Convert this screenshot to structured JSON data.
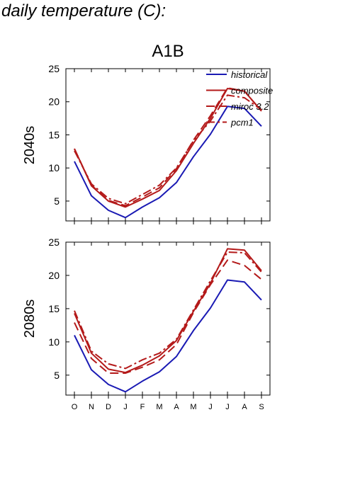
{
  "figure_title": "daily temperature (C):",
  "colors": {
    "historical": "#1a1ab4",
    "composite": "#b41a1a",
    "miroc_3.2": "#b41a1a",
    "pcm1": "#b41a1a"
  },
  "chart_data": [
    {
      "type": "line",
      "title": "A1B",
      "ylabel": "2040s",
      "xlabel": "",
      "categories": [
        "O",
        "N",
        "D",
        "J",
        "F",
        "M",
        "A",
        "M",
        "J",
        "J",
        "A",
        "S"
      ],
      "ylim": [
        2,
        25
      ],
      "yticks": [
        5,
        10,
        15,
        20,
        25
      ],
      "grid": false,
      "legend": "top-right",
      "series": [
        {
          "name": "historical",
          "color": "#1a1ab4",
          "dash": "solid",
          "values": [
            11.0,
            5.8,
            3.6,
            2.5,
            4.1,
            5.5,
            7.8,
            11.7,
            15.1,
            19.3,
            19.0,
            16.3
          ]
        },
        {
          "name": "composite",
          "color": "#b41a1a",
          "dash": "solid",
          "values": [
            12.9,
            7.3,
            5.0,
            4.1,
            5.3,
            6.6,
            9.6,
            13.7,
            17.5,
            22.0,
            21.6,
            18.6
          ]
        },
        {
          "name": "miroc_3.2",
          "color": "#b41a1a",
          "dash": "dash",
          "values": [
            12.9,
            7.4,
            5.1,
            4.3,
            5.6,
            7.0,
            9.9,
            14.2,
            17.9,
            22.1,
            21.6,
            18.6
          ]
        },
        {
          "name": "pcm1",
          "color": "#b41a1a",
          "dash": "dashdot",
          "values": [
            12.6,
            7.6,
            5.4,
            4.6,
            6.0,
            7.4,
            10.0,
            14.1,
            17.1,
            21.0,
            20.6,
            18.8
          ]
        }
      ]
    },
    {
      "type": "line",
      "title": "",
      "ylabel": "2080s",
      "xlabel": "",
      "categories": [
        "O",
        "N",
        "D",
        "J",
        "F",
        "M",
        "A",
        "M",
        "J",
        "J",
        "A",
        "S"
      ],
      "ylim": [
        2,
        25
      ],
      "yticks": [
        5,
        10,
        15,
        20,
        25
      ],
      "grid": false,
      "legend": "none",
      "series": [
        {
          "name": "historical",
          "color": "#1a1ab4",
          "dash": "solid",
          "values": [
            11.0,
            5.8,
            3.6,
            2.5,
            4.1,
            5.5,
            7.8,
            11.7,
            15.1,
            19.3,
            19.0,
            16.3
          ]
        },
        {
          "name": "composite",
          "color": "#b41a1a",
          "dash": "solid",
          "values": [
            14.3,
            8.3,
            5.9,
            5.4,
            6.5,
            7.9,
            10.2,
            14.6,
            18.8,
            24.0,
            23.8,
            20.7
          ]
        },
        {
          "name": "miroc_3.2",
          "color": "#b41a1a",
          "dash": "dash",
          "values": [
            12.9,
            7.5,
            5.3,
            5.3,
            6.2,
            7.3,
            9.6,
            14.4,
            18.6,
            22.3,
            21.5,
            19.4
          ]
        },
        {
          "name": "pcm1",
          "color": "#b41a1a",
          "dash": "dashdot",
          "values": [
            14.7,
            8.6,
            6.7,
            6.0,
            7.3,
            8.3,
            10.4,
            14.8,
            19.2,
            23.5,
            23.4,
            20.5
          ]
        }
      ]
    }
  ]
}
